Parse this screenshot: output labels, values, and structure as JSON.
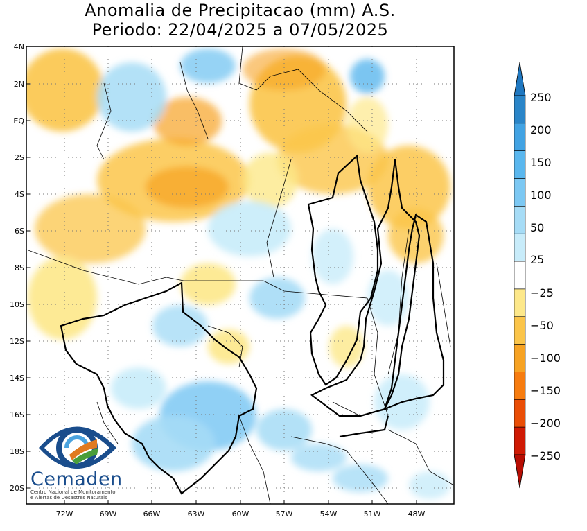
{
  "title": {
    "line1": "Anomalia de Precipitacao (mm) A.S.",
    "line2": "Periodo: 22/04/2025 a 07/05/2025"
  },
  "map": {
    "lat_ticks": [
      "4N",
      "2N",
      "EQ",
      "2S",
      "4S",
      "6S",
      "8S",
      "10S",
      "12S",
      "14S",
      "16S",
      "18S",
      "20S"
    ],
    "lon_ticks": [
      "72W",
      "69W",
      "66W",
      "63W",
      "60W",
      "57W",
      "54W",
      "51W",
      "48W"
    ]
  },
  "colorbar": {
    "labels": [
      "250",
      "200",
      "150",
      "100",
      "50",
      "25",
      "−25",
      "−50",
      "−100",
      "−150",
      "−200",
      "−250"
    ],
    "colors": [
      "#2a85c8",
      "#42a3e3",
      "#5ab7ee",
      "#7cc8f3",
      "#a6dcf6",
      "#c8ecfa",
      "#ffffff",
      "#fde88a",
      "#fbc54a",
      "#f7a323",
      "#f77c0f",
      "#ea4e06",
      "#cf1a04"
    ],
    "positive_arrow_color": "#1f78c1",
    "negative_arrow_color": "#b70d03"
  },
  "logo": {
    "name": "Cemaden",
    "subtitle_line1": "Centro Nacional de Monitoramento",
    "subtitle_line2": "e Alertas de Desastres Naturais"
  }
}
